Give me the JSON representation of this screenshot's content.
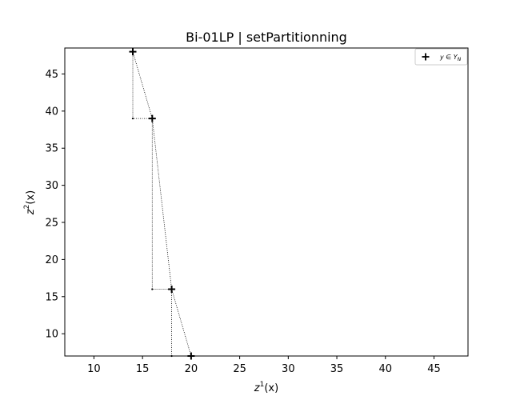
{
  "chart_data": {
    "type": "scatter",
    "title": "Bi-01LP | setPartitionning",
    "xlabel": "z",
    "xlabel_sup": "1",
    "xlabel_suffix": "(x)",
    "ylabel": "z",
    "ylabel_sup": "2",
    "ylabel_suffix": "(x)",
    "xlim": [
      7.0,
      48.5
    ],
    "ylim": [
      7.0,
      48.5
    ],
    "xticks": [
      10,
      15,
      20,
      25,
      30,
      35,
      40,
      45
    ],
    "yticks": [
      10,
      15,
      20,
      25,
      30,
      35,
      40,
      45
    ],
    "grid": false,
    "legend_position": "top-right",
    "legend_entries": [
      {
        "label_main": "y ∈ Y",
        "label_sub": "N",
        "marker": "plus"
      }
    ],
    "series": [
      {
        "marker": "plus",
        "points": [
          {
            "x": 14,
            "y": 48
          },
          {
            "x": 16,
            "y": 39
          },
          {
            "x": 18,
            "y": 16
          },
          {
            "x": 20,
            "y": 7
          }
        ]
      }
    ],
    "nadir_points": [
      {
        "x": 14,
        "y": 39
      },
      {
        "x": 16,
        "y": 16
      },
      {
        "x": 18,
        "y": 7
      }
    ]
  }
}
